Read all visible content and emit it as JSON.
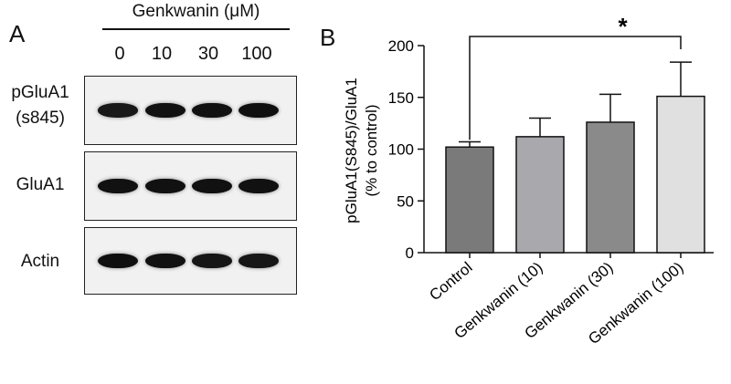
{
  "panel_a": {
    "letter": "A",
    "treatment_label": "Genkwanin (μM)",
    "doses": [
      "0",
      "10",
      "30",
      "100"
    ],
    "blots": [
      {
        "label_lines": [
          "pGluA1",
          "(s845)"
        ],
        "band_intensity": [
          0.8,
          0.95,
          0.95,
          1.0
        ]
      },
      {
        "label_lines": [
          "GluA1"
        ],
        "band_intensity": [
          0.95,
          0.95,
          0.95,
          0.95
        ]
      },
      {
        "label_lines": [
          "Actin"
        ],
        "band_intensity": [
          1.0,
          0.95,
          0.85,
          0.85
        ]
      }
    ]
  },
  "panel_b": {
    "letter": "B",
    "significance": "*",
    "colors": {
      "bars": [
        "#7a7a7a",
        "#a9a9ad",
        "#8a8a8a",
        "#e0e0e0"
      ]
    }
  },
  "chart_data": {
    "type": "bar",
    "categories": [
      "Control",
      "Genkwanin (10)",
      "Genkwanin (30)",
      "Genkwanin (100)"
    ],
    "values": [
      102,
      112,
      126,
      151
    ],
    "error_upper": [
      107,
      130,
      153,
      184
    ],
    "ylabel_lines": [
      "pGluA1(S845)/GluA1",
      "(% to control)"
    ],
    "xlabel": "",
    "ylim": [
      0,
      200
    ],
    "yticks": [
      0,
      50,
      100,
      150,
      200
    ],
    "grid": false,
    "significance": {
      "from": "Control",
      "to": "Genkwanin (100)",
      "label": "*"
    }
  }
}
